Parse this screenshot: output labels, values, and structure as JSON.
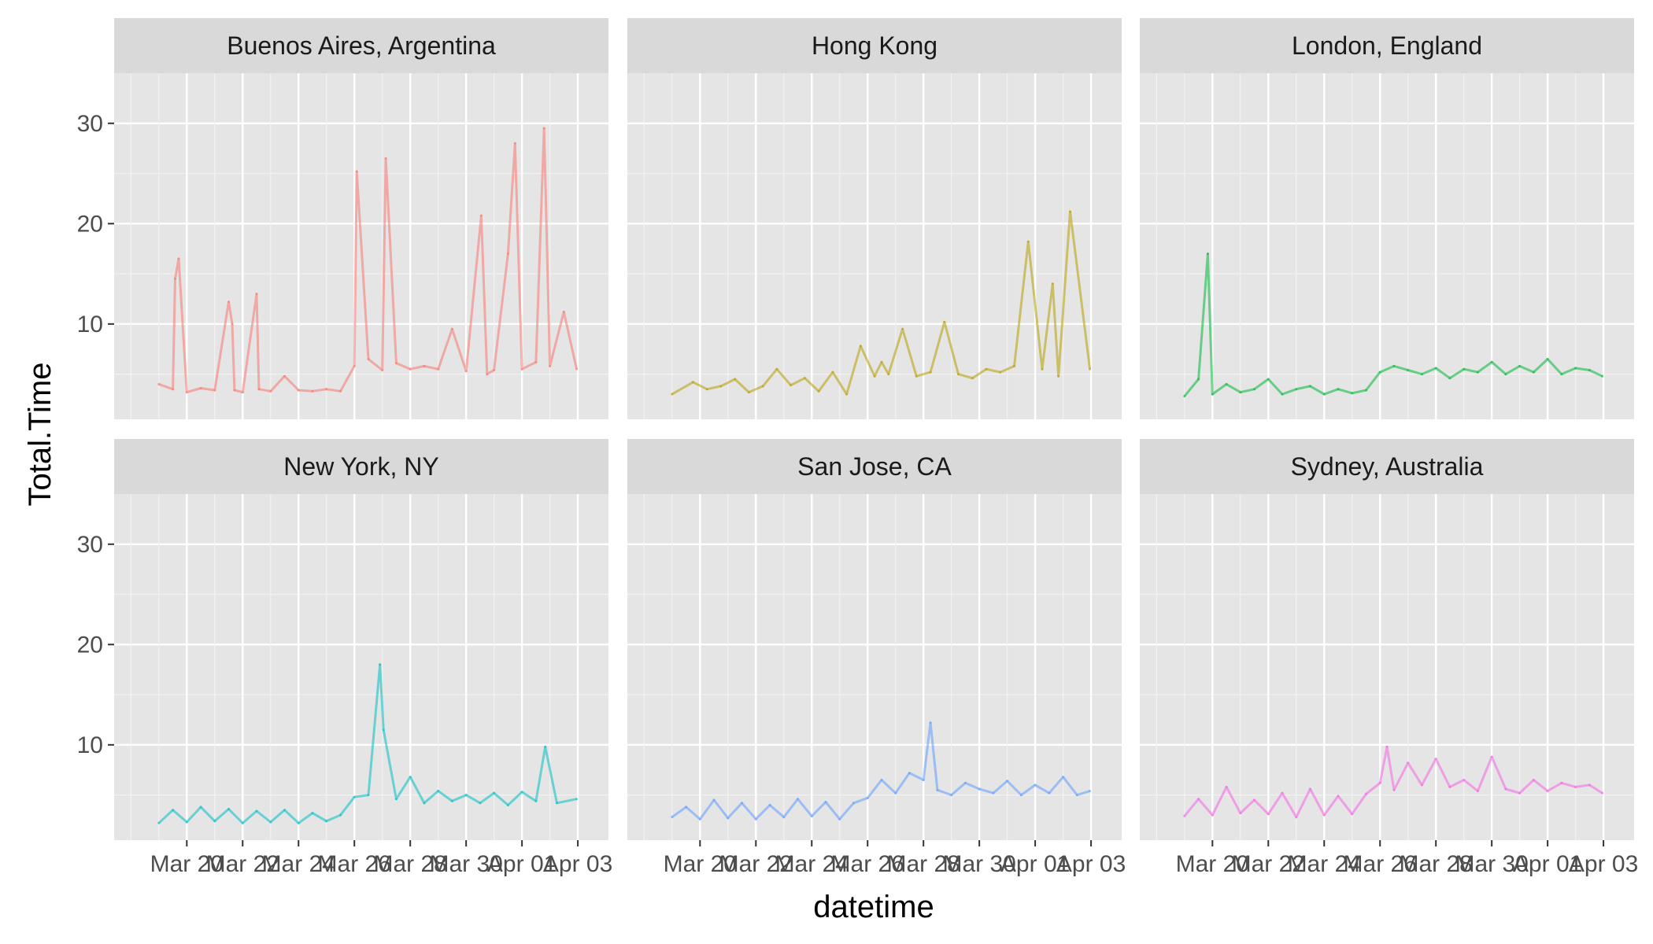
{
  "chart_data": {
    "type": "line",
    "layout": "facet-grid 2x3",
    "xlabel": "datetime",
    "ylabel": "Total.Time",
    "ylim": [
      0.5,
      35
    ],
    "y_ticks": [
      10,
      20,
      30
    ],
    "x_range": [
      "2017-03-18",
      "2017-04-03"
    ],
    "x_ticks": [
      {
        "date": "2017-03-20",
        "label": "Mar 20"
      },
      {
        "date": "2017-03-22",
        "label": "Mar 22"
      },
      {
        "date": "2017-03-24",
        "label": "Mar 24"
      },
      {
        "date": "2017-03-26",
        "label": "Mar 26"
      },
      {
        "date": "2017-03-28",
        "label": "Mar 28"
      },
      {
        "date": "2017-03-30",
        "label": "Mar 30"
      },
      {
        "date": "2017-04-01",
        "label": "Apr 01"
      },
      {
        "date": "2017-04-03",
        "label": "Apr 03"
      }
    ],
    "grid": true,
    "legend": "none",
    "panel_background": "#e5e5e5",
    "strip_background": "#d9d9d9",
    "series": [
      {
        "name": "Buenos Aires, Argentina",
        "color": "#f8766d",
        "x": [
          "2017-03-19 00:00",
          "2017-03-19 12:00",
          "2017-03-19 14:00",
          "2017-03-19 17:00",
          "2017-03-20 00:00",
          "2017-03-20 12:00",
          "2017-03-21 00:00",
          "2017-03-21 12:00",
          "2017-03-21 15:00",
          "2017-03-21 17:00",
          "2017-03-22 00:00",
          "2017-03-22 12:00",
          "2017-03-22 14:00",
          "2017-03-23 00:00",
          "2017-03-23 12:00",
          "2017-03-24 00:00",
          "2017-03-24 12:00",
          "2017-03-25 00:00",
          "2017-03-25 12:00",
          "2017-03-26 00:00",
          "2017-03-26 02:00",
          "2017-03-26 12:00",
          "2017-03-27 00:00",
          "2017-03-27 03:00",
          "2017-03-27 12:00",
          "2017-03-28 00:00",
          "2017-03-28 12:00",
          "2017-03-29 00:00",
          "2017-03-29 12:00",
          "2017-03-30 00:00",
          "2017-03-30 13:00",
          "2017-03-30 18:00",
          "2017-03-31 00:00",
          "2017-03-31 12:00",
          "2017-03-31 18:00",
          "2017-04-01 00:00",
          "2017-04-01 12:00",
          "2017-04-01 19:00",
          "2017-04-02 00:00",
          "2017-04-02 12:00",
          "2017-04-02 23:00"
        ],
        "values": [
          4.0,
          3.5,
          14.5,
          16.5,
          3.2,
          3.6,
          3.4,
          12.2,
          10.0,
          3.4,
          3.2,
          13.0,
          3.5,
          3.3,
          4.8,
          3.4,
          3.3,
          3.5,
          3.3,
          5.8,
          25.2,
          6.5,
          5.4,
          26.5,
          6.1,
          5.5,
          5.8,
          5.5,
          9.5,
          5.3,
          20.8,
          5.0,
          5.4,
          17.0,
          28.0,
          5.5,
          6.2,
          29.5,
          5.8,
          11.2,
          5.5
        ]
      },
      {
        "name": "Hong Kong",
        "color": "#b79f00",
        "x": [
          "2017-03-19 00:00",
          "2017-03-19 18:00",
          "2017-03-20 06:00",
          "2017-03-20 18:00",
          "2017-03-21 06:00",
          "2017-03-21 18:00",
          "2017-03-22 06:00",
          "2017-03-22 18:00",
          "2017-03-23 06:00",
          "2017-03-23 18:00",
          "2017-03-24 06:00",
          "2017-03-24 18:00",
          "2017-03-25 06:00",
          "2017-03-25 18:00",
          "2017-03-26 06:00",
          "2017-03-26 12:00",
          "2017-03-26 18:00",
          "2017-03-27 06:00",
          "2017-03-27 18:00",
          "2017-03-28 06:00",
          "2017-03-28 18:00",
          "2017-03-29 06:00",
          "2017-03-29 18:00",
          "2017-03-30 06:00",
          "2017-03-30 18:00",
          "2017-03-31 06:00",
          "2017-03-31 18:00",
          "2017-04-01 06:00",
          "2017-04-01 15:00",
          "2017-04-01 20:00",
          "2017-04-02 06:00",
          "2017-04-02 23:00"
        ],
        "values": [
          3.0,
          4.2,
          3.5,
          3.8,
          4.5,
          3.2,
          3.8,
          5.5,
          3.9,
          4.6,
          3.3,
          5.2,
          3.0,
          7.8,
          4.8,
          6.2,
          5.0,
          9.5,
          4.8,
          5.2,
          10.2,
          5.0,
          4.6,
          5.5,
          5.2,
          5.8,
          18.2,
          5.5,
          14.0,
          4.8,
          21.2,
          5.5
        ]
      },
      {
        "name": "London, England",
        "color": "#00ba38",
        "x": [
          "2017-03-19 00:00",
          "2017-03-19 12:00",
          "2017-03-19 20:00",
          "2017-03-20 00:00",
          "2017-03-20 12:00",
          "2017-03-21 00:00",
          "2017-03-21 12:00",
          "2017-03-22 00:00",
          "2017-03-22 12:00",
          "2017-03-23 00:00",
          "2017-03-23 12:00",
          "2017-03-24 00:00",
          "2017-03-24 12:00",
          "2017-03-25 00:00",
          "2017-03-25 12:00",
          "2017-03-26 00:00",
          "2017-03-26 12:00",
          "2017-03-27 00:00",
          "2017-03-27 12:00",
          "2017-03-28 00:00",
          "2017-03-28 12:00",
          "2017-03-29 00:00",
          "2017-03-29 12:00",
          "2017-03-30 00:00",
          "2017-03-30 12:00",
          "2017-03-31 00:00",
          "2017-03-31 12:00",
          "2017-04-01 00:00",
          "2017-04-01 12:00",
          "2017-04-02 00:00",
          "2017-04-02 12:00",
          "2017-04-02 23:00"
        ],
        "values": [
          2.8,
          4.5,
          17.0,
          3.0,
          4.0,
          3.2,
          3.5,
          4.5,
          3.0,
          3.5,
          3.8,
          3.0,
          3.5,
          3.1,
          3.4,
          5.2,
          5.8,
          5.4,
          5.0,
          5.6,
          4.6,
          5.5,
          5.2,
          6.2,
          5.0,
          5.8,
          5.2,
          6.5,
          5.0,
          5.6,
          5.4,
          4.8
        ]
      },
      {
        "name": "New York, NY",
        "color": "#00bfc4",
        "x": [
          "2017-03-19 00:00",
          "2017-03-19 12:00",
          "2017-03-20 00:00",
          "2017-03-20 12:00",
          "2017-03-21 00:00",
          "2017-03-21 12:00",
          "2017-03-22 00:00",
          "2017-03-22 12:00",
          "2017-03-23 00:00",
          "2017-03-23 12:00",
          "2017-03-24 00:00",
          "2017-03-24 12:00",
          "2017-03-25 00:00",
          "2017-03-25 12:00",
          "2017-03-26 00:00",
          "2017-03-26 12:00",
          "2017-03-26 22:00",
          "2017-03-27 01:00",
          "2017-03-27 12:00",
          "2017-03-28 00:00",
          "2017-03-28 12:00",
          "2017-03-29 00:00",
          "2017-03-29 12:00",
          "2017-03-30 00:00",
          "2017-03-30 12:00",
          "2017-03-31 00:00",
          "2017-03-31 12:00",
          "2017-04-01 00:00",
          "2017-04-01 12:00",
          "2017-04-01 20:00",
          "2017-04-02 06:00",
          "2017-04-02 23:00"
        ],
        "values": [
          2.2,
          3.5,
          2.3,
          3.8,
          2.4,
          3.6,
          2.2,
          3.4,
          2.3,
          3.5,
          2.2,
          3.2,
          2.4,
          3.0,
          4.8,
          5.0,
          18.0,
          11.5,
          4.6,
          6.8,
          4.2,
          5.4,
          4.4,
          5.0,
          4.2,
          5.2,
          4.0,
          5.3,
          4.4,
          9.8,
          4.2,
          4.6
        ]
      },
      {
        "name": "San Jose, CA",
        "color": "#619cff",
        "x": [
          "2017-03-19 00:00",
          "2017-03-19 12:00",
          "2017-03-20 00:00",
          "2017-03-20 12:00",
          "2017-03-21 00:00",
          "2017-03-21 12:00",
          "2017-03-22 00:00",
          "2017-03-22 12:00",
          "2017-03-23 00:00",
          "2017-03-23 12:00",
          "2017-03-24 00:00",
          "2017-03-24 12:00",
          "2017-03-25 00:00",
          "2017-03-25 12:00",
          "2017-03-26 00:00",
          "2017-03-26 12:00",
          "2017-03-27 00:00",
          "2017-03-27 12:00",
          "2017-03-28 00:00",
          "2017-03-28 06:00",
          "2017-03-28 12:00",
          "2017-03-29 00:00",
          "2017-03-29 12:00",
          "2017-03-30 00:00",
          "2017-03-30 12:00",
          "2017-03-31 00:00",
          "2017-03-31 12:00",
          "2017-04-01 00:00",
          "2017-04-01 12:00",
          "2017-04-02 00:00",
          "2017-04-02 12:00",
          "2017-04-02 23:00"
        ],
        "values": [
          2.8,
          3.8,
          2.6,
          4.5,
          2.7,
          4.2,
          2.6,
          4.0,
          2.8,
          4.6,
          2.9,
          4.3,
          2.6,
          4.2,
          4.7,
          6.5,
          5.2,
          7.2,
          6.5,
          12.2,
          5.5,
          5.0,
          6.2,
          5.6,
          5.2,
          6.4,
          5.0,
          6.0,
          5.2,
          6.8,
          5.0,
          5.4
        ]
      },
      {
        "name": "Sydney, Australia",
        "color": "#f564e3",
        "x": [
          "2017-03-19 00:00",
          "2017-03-19 12:00",
          "2017-03-20 00:00",
          "2017-03-20 12:00",
          "2017-03-21 00:00",
          "2017-03-21 12:00",
          "2017-03-22 00:00",
          "2017-03-22 12:00",
          "2017-03-23 00:00",
          "2017-03-23 12:00",
          "2017-03-24 00:00",
          "2017-03-24 12:00",
          "2017-03-25 00:00",
          "2017-03-25 12:00",
          "2017-03-26 00:00",
          "2017-03-26 06:00",
          "2017-03-26 12:00",
          "2017-03-27 00:00",
          "2017-03-27 12:00",
          "2017-03-28 00:00",
          "2017-03-28 12:00",
          "2017-03-29 00:00",
          "2017-03-29 12:00",
          "2017-03-30 00:00",
          "2017-03-30 12:00",
          "2017-03-31 00:00",
          "2017-03-31 12:00",
          "2017-04-01 00:00",
          "2017-04-01 12:00",
          "2017-04-02 00:00",
          "2017-04-02 12:00",
          "2017-04-02 23:00"
        ],
        "values": [
          2.9,
          4.6,
          3.0,
          5.8,
          3.2,
          4.5,
          3.1,
          5.2,
          2.8,
          5.6,
          3.0,
          4.9,
          3.1,
          5.1,
          6.2,
          9.8,
          5.5,
          8.2,
          6.0,
          8.6,
          5.8,
          6.5,
          5.4,
          8.8,
          5.6,
          5.2,
          6.5,
          5.4,
          6.2,
          5.8,
          6.0,
          5.2
        ]
      }
    ]
  }
}
